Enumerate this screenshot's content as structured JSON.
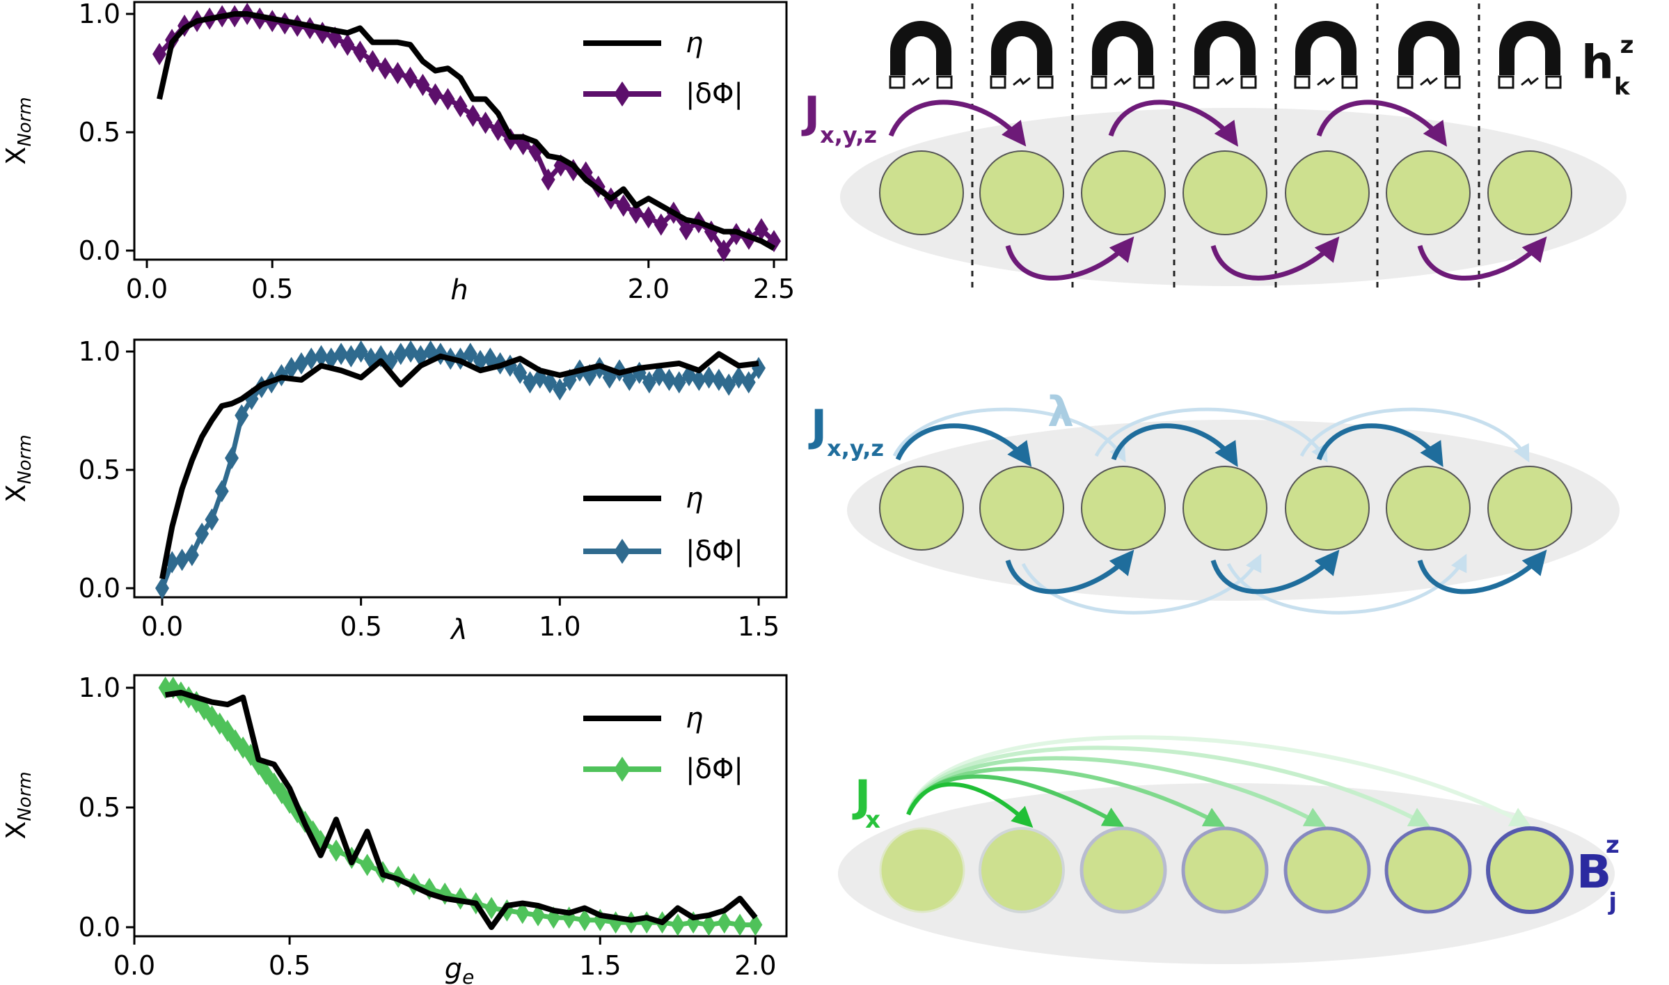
{
  "chart_data": [
    {
      "type": "line",
      "xlabel": "h",
      "ylabel_main": "X",
      "ylabel_sub": "Norm",
      "xlim": [
        -0.05,
        2.55
      ],
      "ylim": [
        0,
        1.0
      ],
      "xticks": [
        0.0,
        0.5,
        2.0,
        2.5
      ],
      "xtick_labels": [
        "0.0",
        "0.5",
        "2.0",
        "2.5"
      ],
      "yticks": [
        0.0,
        0.5,
        1.0
      ],
      "ytick_labels": [
        "0.0",
        "0.5",
        "1.0"
      ],
      "legend_position": "top-right",
      "series": [
        {
          "name": "η",
          "color": "#000000",
          "marker": false,
          "x": [
            0.05,
            0.1,
            0.15,
            0.2,
            0.25,
            0.3,
            0.35,
            0.4,
            0.45,
            0.5,
            0.55,
            0.6,
            0.65,
            0.7,
            0.75,
            0.8,
            0.85,
            0.9,
            0.95,
            1.0,
            1.05,
            1.1,
            1.15,
            1.2,
            1.25,
            1.3,
            1.35,
            1.4,
            1.45,
            1.5,
            1.55,
            1.6,
            1.65,
            1.7,
            1.75,
            1.8,
            1.85,
            1.9,
            1.95,
            2.0,
            2.05,
            2.1,
            2.15,
            2.2,
            2.25,
            2.3,
            2.35,
            2.4,
            2.45,
            2.5
          ],
          "y": [
            0.64,
            0.88,
            0.94,
            0.97,
            0.98,
            0.99,
            1.0,
            1.0,
            0.99,
            0.98,
            0.97,
            0.96,
            0.95,
            0.94,
            0.93,
            0.92,
            0.94,
            0.88,
            0.88,
            0.88,
            0.87,
            0.8,
            0.76,
            0.77,
            0.73,
            0.64,
            0.64,
            0.58,
            0.48,
            0.48,
            0.46,
            0.4,
            0.39,
            0.36,
            0.3,
            0.26,
            0.22,
            0.26,
            0.19,
            0.22,
            0.19,
            0.16,
            0.13,
            0.12,
            0.1,
            0.08,
            0.08,
            0.06,
            0.04,
            0.01
          ]
        },
        {
          "name": "|δΦ|",
          "color": "#5c0f6b",
          "marker": true,
          "x": [
            0.05,
            0.1,
            0.15,
            0.2,
            0.25,
            0.3,
            0.35,
            0.4,
            0.45,
            0.5,
            0.55,
            0.6,
            0.65,
            0.7,
            0.75,
            0.8,
            0.85,
            0.9,
            0.95,
            1.0,
            1.05,
            1.1,
            1.15,
            1.2,
            1.25,
            1.3,
            1.35,
            1.4,
            1.45,
            1.5,
            1.55,
            1.6,
            1.65,
            1.7,
            1.75,
            1.8,
            1.85,
            1.9,
            1.95,
            2.0,
            2.05,
            2.1,
            2.15,
            2.2,
            2.25,
            2.3,
            2.35,
            2.4,
            2.45,
            2.5
          ],
          "y": [
            0.83,
            0.89,
            0.95,
            0.97,
            0.98,
            0.99,
            0.99,
            1.0,
            0.98,
            0.97,
            0.96,
            0.95,
            0.94,
            0.92,
            0.9,
            0.87,
            0.84,
            0.8,
            0.77,
            0.75,
            0.73,
            0.7,
            0.66,
            0.64,
            0.61,
            0.57,
            0.54,
            0.51,
            0.47,
            0.45,
            0.42,
            0.3,
            0.36,
            0.34,
            0.33,
            0.27,
            0.22,
            0.19,
            0.16,
            0.14,
            0.11,
            0.16,
            0.09,
            0.12,
            0.08,
            0.0,
            0.07,
            0.05,
            0.09,
            0.04
          ]
        }
      ]
    },
    {
      "type": "line",
      "xlabel": "λ",
      "ylabel_main": "X",
      "ylabel_sub": "Norm",
      "xlim": [
        -0.07,
        1.57
      ],
      "ylim": [
        0,
        1.0
      ],
      "xticks": [
        0.0,
        0.5,
        1.0,
        1.5
      ],
      "xtick_labels": [
        "0.0",
        "0.5",
        "1.0",
        "1.5"
      ],
      "yticks": [
        0.0,
        0.5,
        1.0
      ],
      "ytick_labels": [
        "0.0",
        "0.5",
        "1.0"
      ],
      "legend_position": "lower-right",
      "series": [
        {
          "name": "η",
          "color": "#000000",
          "marker": false,
          "x": [
            0.0,
            0.025,
            0.05,
            0.075,
            0.1,
            0.125,
            0.15,
            0.175,
            0.2,
            0.25,
            0.3,
            0.35,
            0.4,
            0.45,
            0.5,
            0.55,
            0.6,
            0.65,
            0.7,
            0.75,
            0.8,
            0.85,
            0.9,
            0.95,
            1.0,
            1.05,
            1.1,
            1.15,
            1.2,
            1.25,
            1.3,
            1.35,
            1.4,
            1.45,
            1.5
          ],
          "y": [
            0.04,
            0.26,
            0.42,
            0.54,
            0.64,
            0.71,
            0.77,
            0.78,
            0.8,
            0.86,
            0.89,
            0.88,
            0.94,
            0.92,
            0.89,
            0.96,
            0.86,
            0.94,
            0.98,
            0.96,
            0.92,
            0.94,
            0.97,
            0.92,
            0.9,
            0.92,
            0.94,
            0.91,
            0.93,
            0.94,
            0.95,
            0.92,
            0.99,
            0.94,
            0.95
          ]
        },
        {
          "name": "|δΦ|",
          "color": "#2f6a8e",
          "marker": true,
          "x": [
            0.0,
            0.025,
            0.05,
            0.075,
            0.1,
            0.125,
            0.15,
            0.175,
            0.2,
            0.225,
            0.25,
            0.275,
            0.3,
            0.325,
            0.35,
            0.375,
            0.4,
            0.425,
            0.45,
            0.475,
            0.5,
            0.525,
            0.55,
            0.575,
            0.6,
            0.625,
            0.65,
            0.675,
            0.7,
            0.725,
            0.75,
            0.775,
            0.8,
            0.825,
            0.85,
            0.875,
            0.9,
            0.925,
            0.95,
            0.975,
            1.0,
            1.025,
            1.05,
            1.075,
            1.1,
            1.125,
            1.15,
            1.175,
            1.2,
            1.225,
            1.25,
            1.275,
            1.3,
            1.325,
            1.35,
            1.375,
            1.4,
            1.425,
            1.45,
            1.475,
            1.5
          ],
          "y": [
            0.0,
            0.11,
            0.12,
            0.14,
            0.23,
            0.29,
            0.41,
            0.55,
            0.73,
            0.8,
            0.85,
            0.87,
            0.9,
            0.93,
            0.95,
            0.97,
            0.98,
            0.97,
            0.99,
            0.98,
            1.0,
            0.97,
            0.98,
            0.96,
            0.99,
            1.0,
            0.98,
            1.0,
            0.99,
            0.97,
            0.97,
            0.99,
            0.96,
            0.97,
            0.95,
            0.94,
            0.91,
            0.87,
            0.89,
            0.87,
            0.84,
            0.88,
            0.92,
            0.9,
            0.93,
            0.89,
            0.92,
            0.88,
            0.91,
            0.87,
            0.9,
            0.88,
            0.87,
            0.9,
            0.88,
            0.89,
            0.88,
            0.86,
            0.89,
            0.87,
            0.93
          ]
        }
      ]
    },
    {
      "type": "line",
      "xlabel": "g",
      "xlabel_sub": "e",
      "ylabel_main": "X",
      "ylabel_sub": "Norm",
      "xlim": [
        0.0,
        2.1
      ],
      "ylim": [
        0,
        1.0
      ],
      "xticks": [
        0.0,
        0.5,
        1.5,
        2.0
      ],
      "xtick_labels": [
        "0.0",
        "0.5",
        "1.5",
        "2.0"
      ],
      "yticks": [
        0.0,
        0.5,
        1.0
      ],
      "ytick_labels": [
        "0.0",
        "0.5",
        "1.0"
      ],
      "legend_position": "top-right",
      "series": [
        {
          "name": "η",
          "color": "#000000",
          "marker": false,
          "x": [
            0.1,
            0.15,
            0.2,
            0.25,
            0.3,
            0.35,
            0.4,
            0.45,
            0.5,
            0.55,
            0.6,
            0.65,
            0.7,
            0.75,
            0.8,
            0.85,
            0.9,
            0.95,
            1.0,
            1.05,
            1.1,
            1.15,
            1.2,
            1.25,
            1.3,
            1.35,
            1.4,
            1.45,
            1.5,
            1.55,
            1.6,
            1.65,
            1.7,
            1.75,
            1.8,
            1.85,
            1.9,
            1.95,
            2.0
          ],
          "y": [
            0.97,
            0.98,
            0.96,
            0.94,
            0.93,
            0.96,
            0.7,
            0.68,
            0.58,
            0.43,
            0.3,
            0.45,
            0.27,
            0.4,
            0.22,
            0.2,
            0.17,
            0.14,
            0.12,
            0.11,
            0.1,
            0.0,
            0.09,
            0.1,
            0.09,
            0.07,
            0.06,
            0.08,
            0.05,
            0.04,
            0.03,
            0.04,
            0.02,
            0.08,
            0.04,
            0.05,
            0.07,
            0.12,
            0.04
          ]
        },
        {
          "name": "|δΦ|",
          "color": "#4fc25a",
          "marker": true,
          "x": [
            0.1,
            0.125,
            0.15,
            0.175,
            0.2,
            0.225,
            0.25,
            0.275,
            0.3,
            0.325,
            0.35,
            0.375,
            0.4,
            0.425,
            0.45,
            0.475,
            0.5,
            0.525,
            0.55,
            0.575,
            0.6,
            0.65,
            0.7,
            0.75,
            0.8,
            0.85,
            0.9,
            0.95,
            1.0,
            1.05,
            1.1,
            1.15,
            1.2,
            1.25,
            1.3,
            1.35,
            1.4,
            1.45,
            1.5,
            1.55,
            1.6,
            1.65,
            1.7,
            1.75,
            1.8,
            1.85,
            1.9,
            1.95,
            2.0
          ],
          "y": [
            1.0,
            1.0,
            0.98,
            0.96,
            0.94,
            0.91,
            0.88,
            0.85,
            0.82,
            0.78,
            0.75,
            0.72,
            0.68,
            0.64,
            0.6,
            0.56,
            0.52,
            0.48,
            0.44,
            0.4,
            0.36,
            0.32,
            0.29,
            0.26,
            0.23,
            0.21,
            0.18,
            0.16,
            0.14,
            0.12,
            0.1,
            0.08,
            0.07,
            0.06,
            0.05,
            0.04,
            0.04,
            0.03,
            0.03,
            0.02,
            0.02,
            0.02,
            0.02,
            0.01,
            0.02,
            0.01,
            0.02,
            0.01,
            0.01
          ]
        }
      ]
    }
  ],
  "diagrams": [
    {
      "coupling_main": "J",
      "coupling_sub": "x,y,z",
      "coupling_color": "#6d1a78",
      "field_main": "h",
      "field_sub": "k",
      "field_sup": "z",
      "node_count": 7
    },
    {
      "coupling_main": "J",
      "coupling_sub": "x,y,z",
      "coupling_color": "#1f6d9c",
      "extra_label": "λ",
      "extra_color": "#a9cde2",
      "node_count": 7
    },
    {
      "coupling_main": "J",
      "coupling_sub": "x",
      "coupling_color": "#27c33b",
      "field_main": "B",
      "field_sub": "j",
      "field_sup": "z",
      "field_color": "#2b2aa0",
      "node_count": 7
    }
  ]
}
